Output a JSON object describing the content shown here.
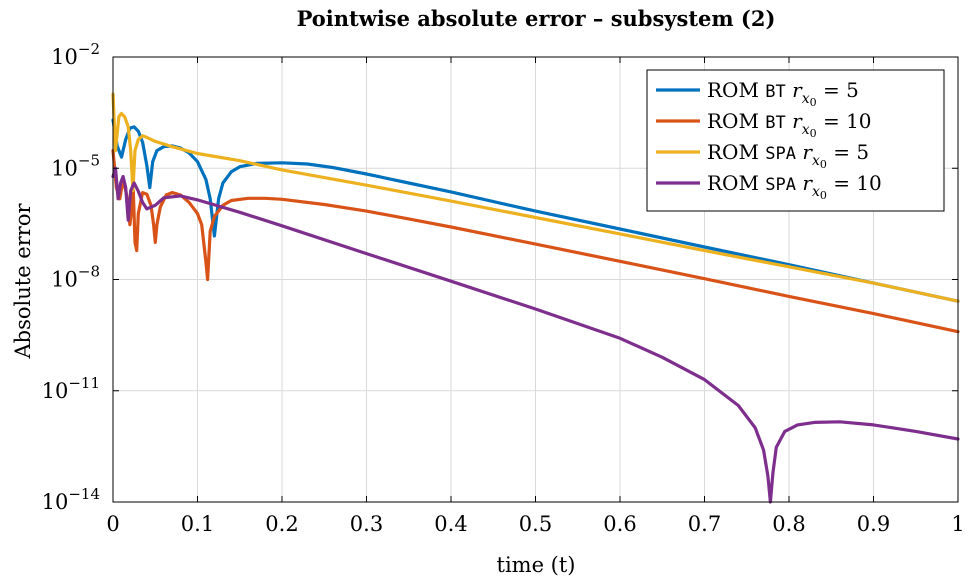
{
  "chart_data": {
    "type": "line",
    "title": "Pointwise absolute error – subsystem (2)",
    "xlabel": "time (t)",
    "ylabel": "Absolute error",
    "xlim": [
      0,
      1
    ],
    "ylim": [
      1e-14,
      0.01
    ],
    "yscale": "log",
    "grid": true,
    "legend_position": "top-right",
    "x_ticks": [
      0,
      0.1,
      0.2,
      0.3,
      0.4,
      0.5,
      0.6,
      0.7,
      0.8,
      0.9,
      1
    ],
    "x_tick_labels": [
      "0",
      "0.1",
      "0.2",
      "0.3",
      "0.4",
      "0.5",
      "0.6",
      "0.7",
      "0.8",
      "0.9",
      "1"
    ],
    "y_ticks": [
      {
        "value": 1e-14,
        "base": "10",
        "exp": "−14"
      },
      {
        "value": 1e-11,
        "base": "10",
        "exp": "−11"
      },
      {
        "value": 1e-08,
        "base": "10",
        "exp": "−8"
      },
      {
        "value": 1e-05,
        "base": "10",
        "exp": "−5"
      },
      {
        "value": 0.01,
        "base": "10",
        "exp": "−2"
      }
    ],
    "series": [
      {
        "label_prefix": "ROM",
        "label_method": "BT",
        "label_var": "r",
        "label_sub": "x",
        "label_subsub": "0",
        "label_value": "= 5",
        "color": "#0072BD",
        "points": [
          [
            0,
            0.0002
          ],
          [
            0.005,
            4e-05
          ],
          [
            0.01,
            2e-05
          ],
          [
            0.015,
            6e-05
          ],
          [
            0.02,
            0.00012
          ],
          [
            0.025,
            0.00013
          ],
          [
            0.03,
            0.0001
          ],
          [
            0.035,
            5e-05
          ],
          [
            0.04,
            1.2e-05
          ],
          [
            0.0435,
            3e-06
          ],
          [
            0.047,
            1.5e-05
          ],
          [
            0.052,
            3e-05
          ],
          [
            0.06,
            3.8e-05
          ],
          [
            0.07,
            4e-05
          ],
          [
            0.08,
            3.5e-05
          ],
          [
            0.09,
            2.6e-05
          ],
          [
            0.1,
            1.5e-05
          ],
          [
            0.11,
            5e-06
          ],
          [
            0.115,
            1.5e-06
          ],
          [
            0.12,
            1.5e-07
          ],
          [
            0.125,
            1.5e-06
          ],
          [
            0.13,
            4e-06
          ],
          [
            0.14,
            8e-06
          ],
          [
            0.15,
            1.1e-05
          ],
          [
            0.17,
            1.35e-05
          ],
          [
            0.2,
            1.4e-05
          ],
          [
            0.23,
            1.3e-05
          ],
          [
            0.26,
            1.05e-05
          ],
          [
            0.3,
            7e-06
          ],
          [
            0.35,
            4e-06
          ],
          [
            0.4,
            2.3e-06
          ],
          [
            0.5,
            7e-07
          ],
          [
            0.6,
            2.3e-07
          ],
          [
            0.7,
            7.5e-08
          ],
          [
            0.8,
            2.5e-08
          ],
          [
            0.9,
            8e-09
          ],
          [
            1.0,
            2.6e-09
          ]
        ]
      },
      {
        "label_prefix": "ROM",
        "label_method": "BT",
        "label_var": "r",
        "label_sub": "x",
        "label_subsub": "0",
        "label_value": "= 10",
        "color": "#D95319",
        "points": [
          [
            0,
            3e-05
          ],
          [
            0.004,
            3e-06
          ],
          [
            0.008,
            1.5e-06
          ],
          [
            0.012,
            5e-06
          ],
          [
            0.016,
            2e-06
          ],
          [
            0.02,
            3e-07
          ],
          [
            0.022,
            8e-07
          ],
          [
            0.024,
            2.5e-06
          ],
          [
            0.026,
            1e-07
          ],
          [
            0.028,
            6e-08
          ],
          [
            0.03,
            6e-07
          ],
          [
            0.035,
            2.2e-06
          ],
          [
            0.04,
            2e-06
          ],
          [
            0.045,
            1e-06
          ],
          [
            0.048,
            3e-07
          ],
          [
            0.05,
            1e-07
          ],
          [
            0.052,
            3e-07
          ],
          [
            0.056,
            9e-07
          ],
          [
            0.063,
            1.9e-06
          ],
          [
            0.07,
            2.2e-06
          ],
          [
            0.08,
            1.9e-06
          ],
          [
            0.09,
            1.2e-06
          ],
          [
            0.1,
            6e-07
          ],
          [
            0.105,
            3e-07
          ],
          [
            0.11,
            3e-08
          ],
          [
            0.112,
            1e-08
          ],
          [
            0.115,
            2e-07
          ],
          [
            0.12,
            5e-07
          ],
          [
            0.13,
            1e-06
          ],
          [
            0.14,
            1.35e-06
          ],
          [
            0.16,
            1.55e-06
          ],
          [
            0.18,
            1.55e-06
          ],
          [
            0.2,
            1.45e-06
          ],
          [
            0.25,
            1.05e-06
          ],
          [
            0.3,
            7e-07
          ],
          [
            0.35,
            4.3e-07
          ],
          [
            0.4,
            2.6e-07
          ],
          [
            0.5,
            9e-08
          ],
          [
            0.6,
            3.1e-08
          ],
          [
            0.7,
            1.05e-08
          ],
          [
            0.8,
            3.5e-09
          ],
          [
            0.9,
            1.2e-09
          ],
          [
            1.0,
            3.9e-10
          ]
        ]
      },
      {
        "label_prefix": "ROM",
        "label_method": "SPA",
        "label_var": "r",
        "label_sub": "x",
        "label_subsub": "0",
        "label_value": "= 5",
        "color": "#EDB120",
        "points": [
          [
            0,
            0.001
          ],
          [
            0.003,
            3e-05
          ],
          [
            0.007,
            0.00025
          ],
          [
            0.01,
            0.0003
          ],
          [
            0.014,
            0.00024
          ],
          [
            0.018,
            0.00013
          ],
          [
            0.021,
            3e-05
          ],
          [
            0.0235,
            2.5e-06
          ],
          [
            0.026,
            3e-05
          ],
          [
            0.03,
            6e-05
          ],
          [
            0.035,
            7.5e-05
          ],
          [
            0.04,
            6.8e-05
          ],
          [
            0.05,
            5.3e-05
          ],
          [
            0.07,
            3.8e-05
          ],
          [
            0.1,
            2.5e-05
          ],
          [
            0.15,
            1.6e-05
          ],
          [
            0.2,
            9e-06
          ],
          [
            0.3,
            3.5e-06
          ],
          [
            0.4,
            1.3e-06
          ],
          [
            0.5,
            4.7e-07
          ],
          [
            0.6,
            1.7e-07
          ],
          [
            0.7,
            6e-08
          ],
          [
            0.8,
            2.2e-08
          ],
          [
            0.9,
            8e-09
          ],
          [
            1.0,
            2.6e-09
          ]
        ]
      },
      {
        "label_prefix": "ROM",
        "label_method": "SPA",
        "label_var": "r",
        "label_sub": "x",
        "label_subsub": "0",
        "label_value": "= 10",
        "color": "#7E2F8E",
        "points": [
          [
            0,
            6e-06
          ],
          [
            0.003,
            1e-05
          ],
          [
            0.006,
            1.5e-06
          ],
          [
            0.009,
            4e-06
          ],
          [
            0.012,
            6e-06
          ],
          [
            0.015,
            3e-06
          ],
          [
            0.018,
            4e-07
          ],
          [
            0.021,
            2.5e-06
          ],
          [
            0.025,
            4e-06
          ],
          [
            0.03,
            2.4e-06
          ],
          [
            0.035,
            1.2e-06
          ],
          [
            0.04,
            8e-07
          ],
          [
            0.05,
            1e-06
          ],
          [
            0.06,
            1.6e-06
          ],
          [
            0.08,
            1.8e-06
          ],
          [
            0.1,
            1.4e-06
          ],
          [
            0.15,
            6.5e-07
          ],
          [
            0.2,
            2.8e-07
          ],
          [
            0.3,
            5e-08
          ],
          [
            0.4,
            9e-09
          ],
          [
            0.5,
            1.6e-09
          ],
          [
            0.6,
            2.6e-10
          ],
          [
            0.65,
            8e-11
          ],
          [
            0.7,
            2e-11
          ],
          [
            0.74,
            4e-12
          ],
          [
            0.76,
            1e-12
          ],
          [
            0.77,
            2.5e-13
          ],
          [
            0.775,
            5e-14
          ],
          [
            0.778,
            1e-14
          ],
          [
            0.781,
            6e-14
          ],
          [
            0.785,
            3e-13
          ],
          [
            0.795,
            8e-13
          ],
          [
            0.81,
            1.2e-12
          ],
          [
            0.83,
            1.4e-12
          ],
          [
            0.86,
            1.45e-12
          ],
          [
            0.9,
            1.2e-12
          ],
          [
            0.95,
            8e-13
          ],
          [
            1.0,
            5e-13
          ]
        ]
      }
    ]
  }
}
